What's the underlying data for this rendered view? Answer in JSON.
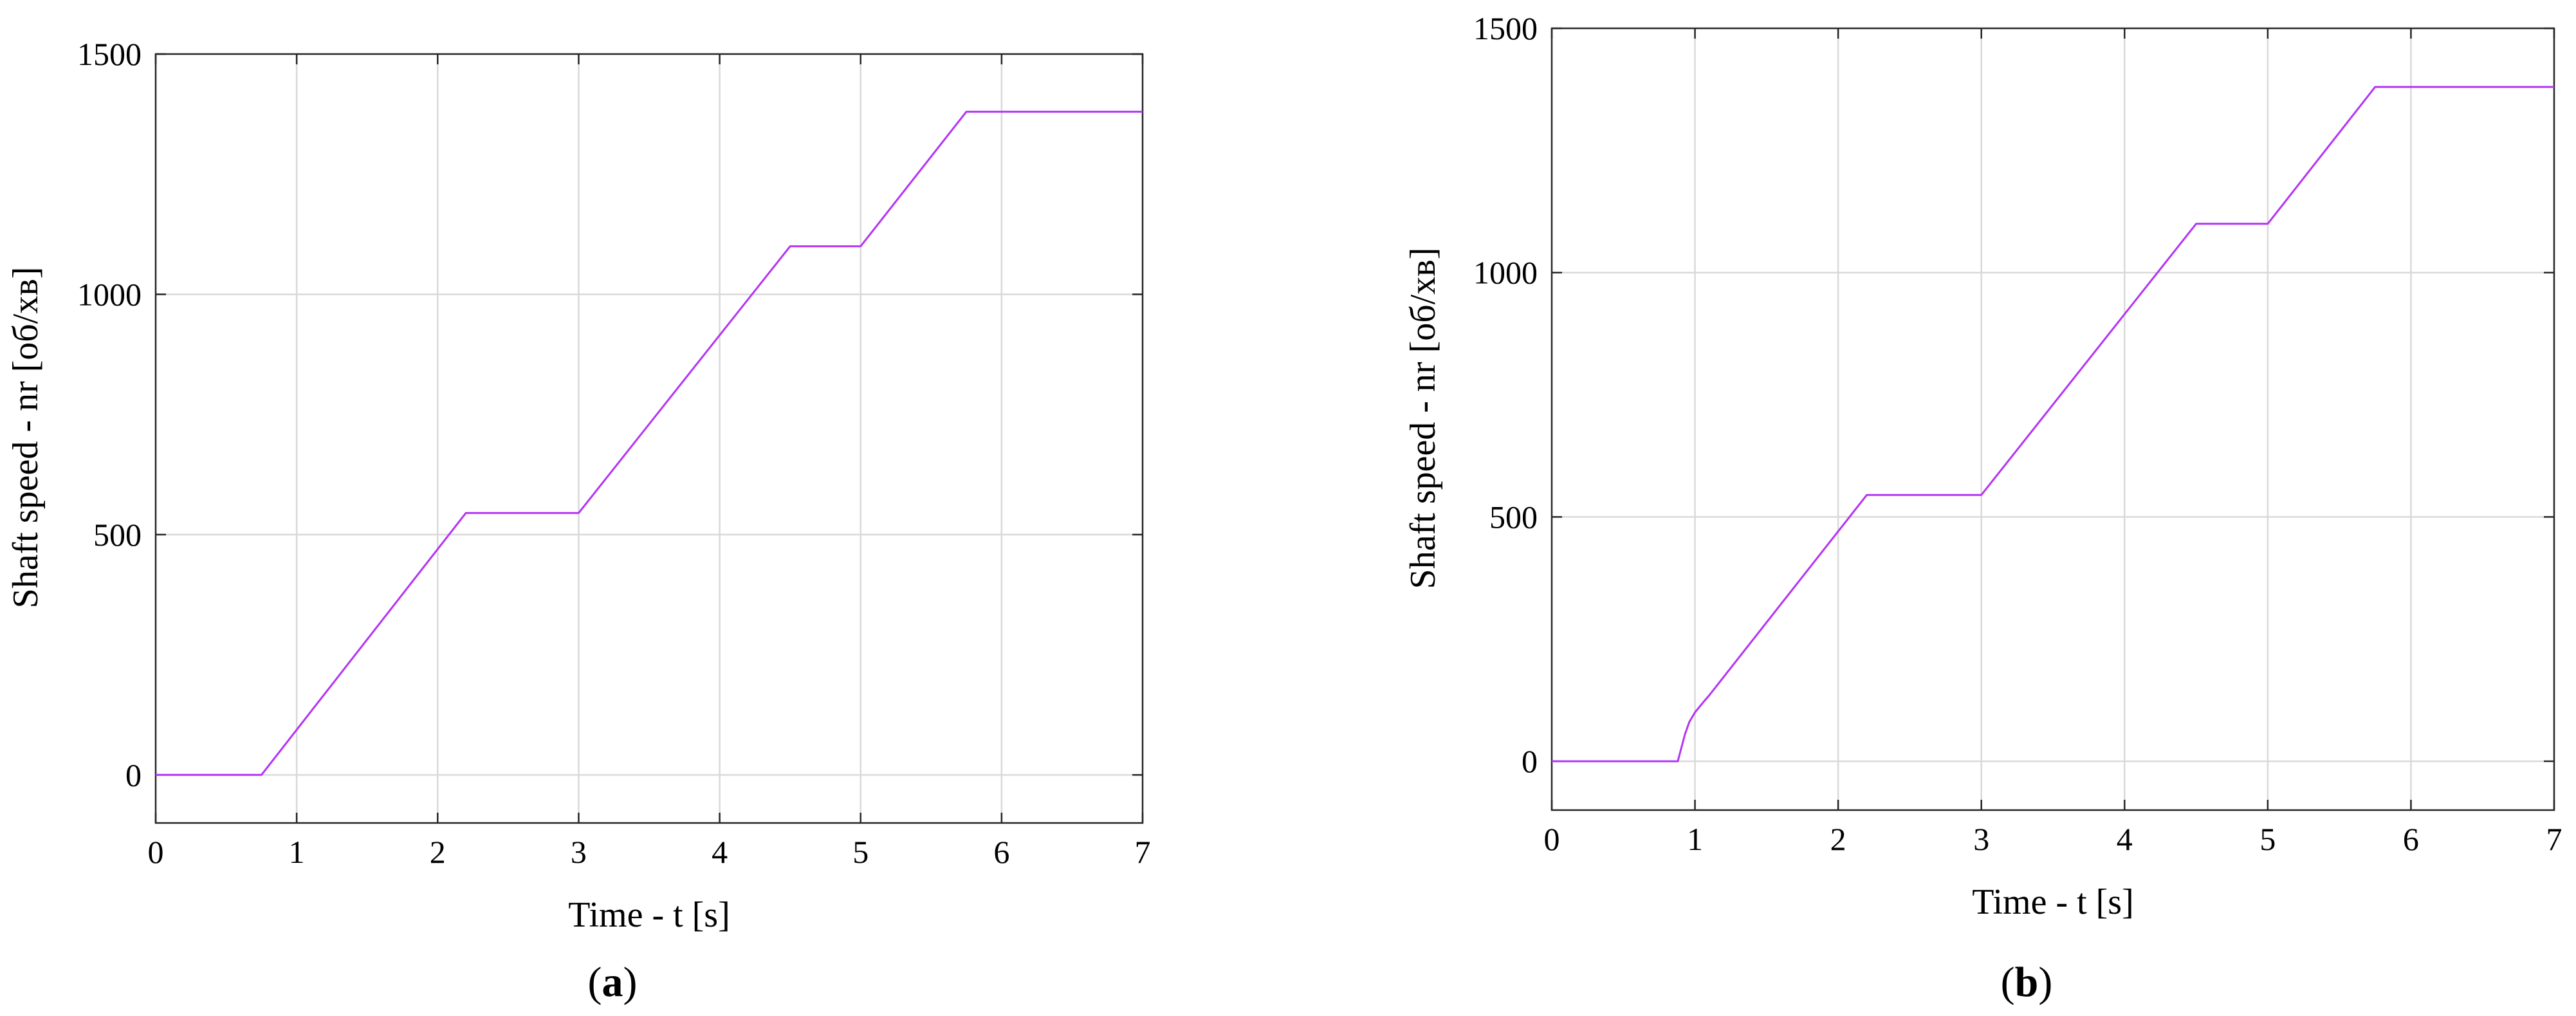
{
  "colors": {
    "series": "#b434f4",
    "axes": "#262626",
    "grid": "#d9d9d9"
  },
  "chart_data": [
    {
      "type": "line",
      "panel_label": {
        "open": "(",
        "letter": "a",
        "close": ")"
      },
      "xlabel": "Time - t [s]",
      "ylabel": "Shaft speed - nr [об/хв]",
      "xlim": [
        0,
        7
      ],
      "ylim": [
        -100,
        1500
      ],
      "xticks": [
        0,
        1,
        2,
        3,
        4,
        5,
        6,
        7
      ],
      "yticks": [
        0,
        500,
        1000,
        1500
      ],
      "grid": true,
      "series": [
        {
          "x": [
            0,
            0.75,
            2.2,
            3.0,
            4.5,
            5.0,
            5.75,
            7.0
          ],
          "y": [
            0,
            0,
            545,
            545,
            1100,
            1100,
            1380,
            1380
          ]
        }
      ]
    },
    {
      "type": "line",
      "panel_label": {
        "open": "(",
        "letter": "b",
        "close": ")"
      },
      "xlabel": "Time - t [s]",
      "ylabel": "Shaft speed - nr [об/хв]",
      "xlim": [
        0,
        7
      ],
      "ylim": [
        -100,
        1500
      ],
      "xticks": [
        0,
        1,
        2,
        3,
        4,
        5,
        6,
        7
      ],
      "yticks": [
        0,
        500,
        1000,
        1500
      ],
      "grid": true,
      "series": [
        {
          "x": [
            0,
            0.88,
            0.9,
            0.93,
            0.96,
            1.0,
            1.05,
            1.1,
            2.2,
            3.0,
            4.5,
            5.0,
            5.75,
            7.0
          ],
          "y": [
            0,
            0,
            22,
            55,
            80,
            100,
            118,
            135,
            545,
            545,
            1100,
            1100,
            1380,
            1380
          ]
        }
      ]
    }
  ]
}
